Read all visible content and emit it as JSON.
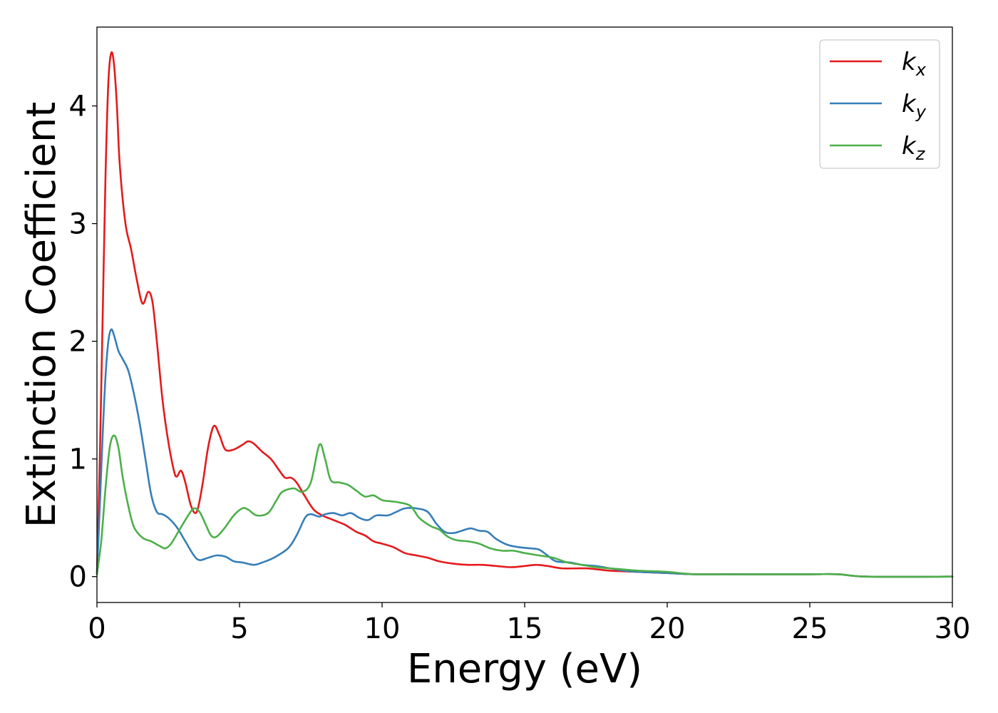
{
  "chart_data": {
    "type": "line",
    "title": "",
    "xlabel": "Energy (eV)",
    "ylabel": "Extinction Coefficient",
    "xlim": [
      0,
      30
    ],
    "ylim": [
      -0.22,
      4.67
    ],
    "xticks": [
      0,
      5,
      10,
      15,
      20,
      25,
      30
    ],
    "yticks": [
      0,
      1,
      2,
      3,
      4
    ],
    "grid": false,
    "legend_position": "top-right",
    "series": [
      {
        "name": "k_x",
        "label_base": "k",
        "label_sub": "x",
        "color": "#e41a1c",
        "points": [
          [
            0,
            0.02
          ],
          [
            0.1,
            1.0
          ],
          [
            0.2,
            2.2
          ],
          [
            0.3,
            3.4
          ],
          [
            0.4,
            4.2
          ],
          [
            0.5,
            4.45
          ],
          [
            0.6,
            4.35
          ],
          [
            0.7,
            4.0
          ],
          [
            0.8,
            3.5
          ],
          [
            1.0,
            3.0
          ],
          [
            1.2,
            2.78
          ],
          [
            1.4,
            2.52
          ],
          [
            1.6,
            2.32
          ],
          [
            1.8,
            2.42
          ],
          [
            1.95,
            2.33
          ],
          [
            2.1,
            2.0
          ],
          [
            2.3,
            1.5
          ],
          [
            2.5,
            1.15
          ],
          [
            2.7,
            0.9
          ],
          [
            2.8,
            0.85
          ],
          [
            2.95,
            0.9
          ],
          [
            3.1,
            0.8
          ],
          [
            3.3,
            0.6
          ],
          [
            3.5,
            0.55
          ],
          [
            3.7,
            0.78
          ],
          [
            3.9,
            1.1
          ],
          [
            4.1,
            1.28
          ],
          [
            4.3,
            1.2
          ],
          [
            4.5,
            1.08
          ],
          [
            4.8,
            1.08
          ],
          [
            5.1,
            1.12
          ],
          [
            5.3,
            1.15
          ],
          [
            5.5,
            1.13
          ],
          [
            5.8,
            1.06
          ],
          [
            6.1,
            1.0
          ],
          [
            6.4,
            0.9
          ],
          [
            6.6,
            0.84
          ],
          [
            6.8,
            0.84
          ],
          [
            7.0,
            0.8
          ],
          [
            7.3,
            0.68
          ],
          [
            7.6,
            0.57
          ],
          [
            7.9,
            0.52
          ],
          [
            8.3,
            0.48
          ],
          [
            8.7,
            0.44
          ],
          [
            9.1,
            0.38
          ],
          [
            9.4,
            0.35
          ],
          [
            9.7,
            0.3
          ],
          [
            10.0,
            0.28
          ],
          [
            10.4,
            0.25
          ],
          [
            10.8,
            0.2
          ],
          [
            11.2,
            0.18
          ],
          [
            11.6,
            0.16
          ],
          [
            12.0,
            0.13
          ],
          [
            12.5,
            0.11
          ],
          [
            13.0,
            0.1
          ],
          [
            13.5,
            0.1
          ],
          [
            14.0,
            0.09
          ],
          [
            14.5,
            0.08
          ],
          [
            15.0,
            0.09
          ],
          [
            15.4,
            0.1
          ],
          [
            15.8,
            0.09
          ],
          [
            16.3,
            0.07
          ],
          [
            16.8,
            0.07
          ],
          [
            17.2,
            0.07
          ],
          [
            17.6,
            0.06
          ],
          [
            18.0,
            0.05
          ],
          [
            19.0,
            0.04
          ],
          [
            20.0,
            0.03
          ],
          [
            21.0,
            0.02
          ],
          [
            23.0,
            0.02
          ],
          [
            25.0,
            0.02
          ],
          [
            26.0,
            0.02
          ],
          [
            27.0,
            0.0
          ],
          [
            30.0,
            0.0
          ]
        ]
      },
      {
        "name": "k_y",
        "label_base": "k",
        "label_sub": "y",
        "color": "#377eb8",
        "points": [
          [
            0,
            0.02
          ],
          [
            0.1,
            0.6
          ],
          [
            0.2,
            1.2
          ],
          [
            0.3,
            1.7
          ],
          [
            0.4,
            2.0
          ],
          [
            0.5,
            2.1
          ],
          [
            0.6,
            2.05
          ],
          [
            0.75,
            1.92
          ],
          [
            0.9,
            1.85
          ],
          [
            1.1,
            1.75
          ],
          [
            1.3,
            1.55
          ],
          [
            1.5,
            1.3
          ],
          [
            1.7,
            1.0
          ],
          [
            1.9,
            0.7
          ],
          [
            2.1,
            0.55
          ],
          [
            2.3,
            0.53
          ],
          [
            2.5,
            0.5
          ],
          [
            2.8,
            0.42
          ],
          [
            3.1,
            0.3
          ],
          [
            3.4,
            0.18
          ],
          [
            3.6,
            0.14
          ],
          [
            3.9,
            0.16
          ],
          [
            4.2,
            0.18
          ],
          [
            4.5,
            0.17
          ],
          [
            4.8,
            0.13
          ],
          [
            5.1,
            0.12
          ],
          [
            5.5,
            0.1
          ],
          [
            5.8,
            0.12
          ],
          [
            6.2,
            0.16
          ],
          [
            6.7,
            0.24
          ],
          [
            7.0,
            0.35
          ],
          [
            7.3,
            0.5
          ],
          [
            7.5,
            0.53
          ],
          [
            7.8,
            0.51
          ],
          [
            8.0,
            0.53
          ],
          [
            8.3,
            0.54
          ],
          [
            8.6,
            0.52
          ],
          [
            8.9,
            0.54
          ],
          [
            9.2,
            0.5
          ],
          [
            9.5,
            0.48
          ],
          [
            9.8,
            0.52
          ],
          [
            10.2,
            0.52
          ],
          [
            10.5,
            0.55
          ],
          [
            10.8,
            0.58
          ],
          [
            11.2,
            0.58
          ],
          [
            11.6,
            0.55
          ],
          [
            11.9,
            0.45
          ],
          [
            12.2,
            0.38
          ],
          [
            12.5,
            0.37
          ],
          [
            12.8,
            0.39
          ],
          [
            13.1,
            0.41
          ],
          [
            13.4,
            0.39
          ],
          [
            13.7,
            0.38
          ],
          [
            14.0,
            0.32
          ],
          [
            14.4,
            0.27
          ],
          [
            14.8,
            0.25
          ],
          [
            15.2,
            0.24
          ],
          [
            15.5,
            0.23
          ],
          [
            15.8,
            0.18
          ],
          [
            16.1,
            0.13
          ],
          [
            16.6,
            0.12
          ],
          [
            17.0,
            0.1
          ],
          [
            17.5,
            0.09
          ],
          [
            18.0,
            0.07
          ],
          [
            18.5,
            0.05
          ],
          [
            19.0,
            0.04
          ],
          [
            20.0,
            0.03
          ],
          [
            21.0,
            0.02
          ],
          [
            23.0,
            0.02
          ],
          [
            25.0,
            0.02
          ],
          [
            26.0,
            0.02
          ],
          [
            27.0,
            0.0
          ],
          [
            30.0,
            0.0
          ]
        ]
      },
      {
        "name": "k_z",
        "label_base": "k",
        "label_sub": "z",
        "color": "#4daf4a",
        "points": [
          [
            0,
            0.02
          ],
          [
            0.15,
            0.3
          ],
          [
            0.3,
            0.75
          ],
          [
            0.45,
            1.1
          ],
          [
            0.6,
            1.2
          ],
          [
            0.75,
            1.1
          ],
          [
            0.9,
            0.85
          ],
          [
            1.1,
            0.6
          ],
          [
            1.3,
            0.42
          ],
          [
            1.6,
            0.33
          ],
          [
            1.9,
            0.3
          ],
          [
            2.2,
            0.26
          ],
          [
            2.4,
            0.24
          ],
          [
            2.6,
            0.28
          ],
          [
            2.9,
            0.4
          ],
          [
            3.2,
            0.52
          ],
          [
            3.4,
            0.58
          ],
          [
            3.6,
            0.55
          ],
          [
            3.8,
            0.45
          ],
          [
            4.0,
            0.35
          ],
          [
            4.2,
            0.34
          ],
          [
            4.5,
            0.42
          ],
          [
            4.8,
            0.52
          ],
          [
            5.1,
            0.58
          ],
          [
            5.3,
            0.57
          ],
          [
            5.6,
            0.52
          ],
          [
            6.0,
            0.54
          ],
          [
            6.3,
            0.65
          ],
          [
            6.5,
            0.72
          ],
          [
            6.9,
            0.75
          ],
          [
            7.2,
            0.72
          ],
          [
            7.5,
            0.8
          ],
          [
            7.8,
            1.12
          ],
          [
            8.0,
            1.0
          ],
          [
            8.2,
            0.82
          ],
          [
            8.5,
            0.8
          ],
          [
            8.8,
            0.78
          ],
          [
            9.1,
            0.73
          ],
          [
            9.4,
            0.68
          ],
          [
            9.7,
            0.69
          ],
          [
            10.0,
            0.65
          ],
          [
            10.3,
            0.64
          ],
          [
            10.6,
            0.63
          ],
          [
            11.0,
            0.6
          ],
          [
            11.3,
            0.5
          ],
          [
            11.7,
            0.43
          ],
          [
            12.0,
            0.4
          ],
          [
            12.3,
            0.34
          ],
          [
            12.6,
            0.31
          ],
          [
            13.0,
            0.3
          ],
          [
            13.4,
            0.28
          ],
          [
            13.8,
            0.24
          ],
          [
            14.2,
            0.22
          ],
          [
            14.6,
            0.22
          ],
          [
            15.0,
            0.2
          ],
          [
            15.5,
            0.18
          ],
          [
            16.0,
            0.16
          ],
          [
            16.5,
            0.12
          ],
          [
            17.0,
            0.1
          ],
          [
            17.5,
            0.08
          ],
          [
            18.0,
            0.07
          ],
          [
            18.5,
            0.06
          ],
          [
            19.0,
            0.05
          ],
          [
            20.0,
            0.04
          ],
          [
            21.0,
            0.02
          ],
          [
            23.0,
            0.02
          ],
          [
            25.0,
            0.02
          ],
          [
            26.0,
            0.02
          ],
          [
            27.0,
            0.0
          ],
          [
            30.0,
            0.0
          ]
        ]
      }
    ]
  }
}
